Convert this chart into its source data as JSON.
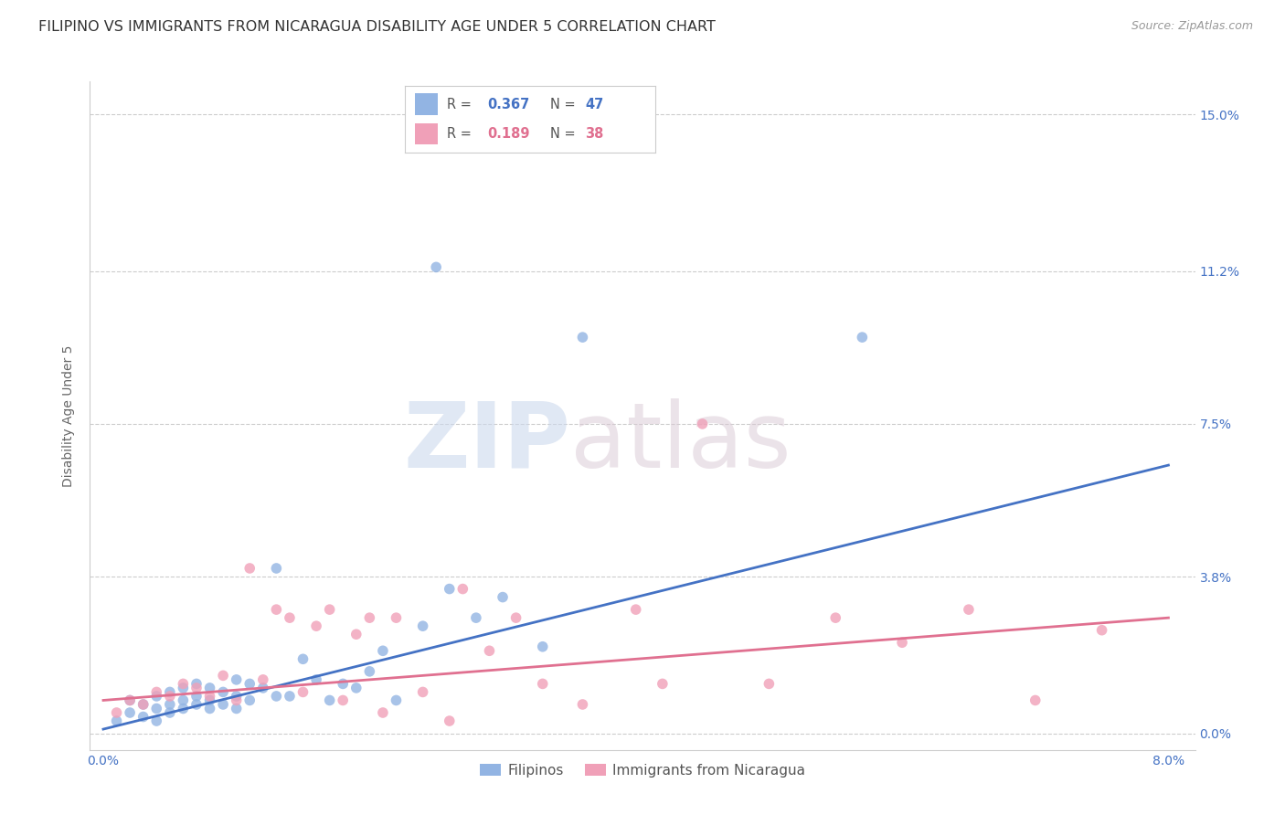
{
  "title": "FILIPINO VS IMMIGRANTS FROM NICARAGUA DISABILITY AGE UNDER 5 CORRELATION CHART",
  "source": "Source: ZipAtlas.com",
  "ylabel": "Disability Age Under 5",
  "xlabel_ticks_show": [
    "0.0%",
    "8.0%"
  ],
  "xlabel_vals_show": [
    0.0,
    0.08
  ],
  "xlabel_vals_all": [
    0.0,
    0.02,
    0.04,
    0.06,
    0.08
  ],
  "ylabel_ticks": [
    "15.0%",
    "11.2%",
    "7.5%",
    "3.8%",
    "0.0%"
  ],
  "ylabel_vals": [
    0.15,
    0.112,
    0.075,
    0.038,
    0.0
  ],
  "ylabel_gridlines": [
    0.15,
    0.112,
    0.075,
    0.038,
    0.0
  ],
  "xlim": [
    -0.001,
    0.082
  ],
  "ylim": [
    -0.004,
    0.158
  ],
  "blue_color": "#92b4e3",
  "pink_color": "#f0a0b8",
  "blue_line_color": "#4472c4",
  "pink_line_color": "#e07090",
  "label_blue": "Filipinos",
  "label_pink": "Immigrants from Nicaragua",
  "watermark_zip": "ZIP",
  "watermark_atlas": "atlas",
  "blue_scatter_x": [
    0.001,
    0.002,
    0.002,
    0.003,
    0.003,
    0.004,
    0.004,
    0.004,
    0.005,
    0.005,
    0.005,
    0.006,
    0.006,
    0.006,
    0.007,
    0.007,
    0.007,
    0.008,
    0.008,
    0.008,
    0.009,
    0.009,
    0.01,
    0.01,
    0.01,
    0.011,
    0.011,
    0.012,
    0.013,
    0.013,
    0.014,
    0.015,
    0.016,
    0.017,
    0.018,
    0.019,
    0.02,
    0.021,
    0.022,
    0.024,
    0.026,
    0.028,
    0.03,
    0.033,
    0.036,
    0.057,
    0.025
  ],
  "blue_scatter_y": [
    0.003,
    0.005,
    0.008,
    0.004,
    0.007,
    0.006,
    0.009,
    0.003,
    0.007,
    0.01,
    0.005,
    0.008,
    0.011,
    0.006,
    0.009,
    0.007,
    0.012,
    0.008,
    0.011,
    0.006,
    0.01,
    0.007,
    0.013,
    0.009,
    0.006,
    0.012,
    0.008,
    0.011,
    0.009,
    0.04,
    0.009,
    0.018,
    0.013,
    0.008,
    0.012,
    0.011,
    0.015,
    0.02,
    0.008,
    0.026,
    0.035,
    0.028,
    0.033,
    0.021,
    0.096,
    0.096,
    0.113
  ],
  "pink_scatter_x": [
    0.001,
    0.002,
    0.003,
    0.004,
    0.005,
    0.006,
    0.007,
    0.008,
    0.009,
    0.01,
    0.011,
    0.012,
    0.013,
    0.014,
    0.015,
    0.016,
    0.017,
    0.018,
    0.019,
    0.02,
    0.021,
    0.022,
    0.024,
    0.026,
    0.027,
    0.029,
    0.031,
    0.033,
    0.036,
    0.04,
    0.042,
    0.045,
    0.05,
    0.055,
    0.06,
    0.065,
    0.07,
    0.075
  ],
  "pink_scatter_y": [
    0.005,
    0.008,
    0.007,
    0.01,
    0.009,
    0.012,
    0.011,
    0.009,
    0.014,
    0.008,
    0.04,
    0.013,
    0.03,
    0.028,
    0.01,
    0.026,
    0.03,
    0.008,
    0.024,
    0.028,
    0.005,
    0.028,
    0.01,
    0.003,
    0.035,
    0.02,
    0.028,
    0.012,
    0.007,
    0.03,
    0.012,
    0.075,
    0.012,
    0.028,
    0.022,
    0.03,
    0.008,
    0.025
  ],
  "blue_line_x": [
    0.0,
    0.08
  ],
  "blue_line_y": [
    0.001,
    0.065
  ],
  "pink_line_x": [
    0.0,
    0.08
  ],
  "pink_line_y": [
    0.008,
    0.028
  ],
  "title_fontsize": 11.5,
  "axis_label_fontsize": 10,
  "tick_fontsize": 10,
  "scatter_size": 70,
  "background_color": "#ffffff",
  "grid_color": "#cccccc",
  "axis_color": "#cccccc",
  "tick_color": "#4472c4"
}
